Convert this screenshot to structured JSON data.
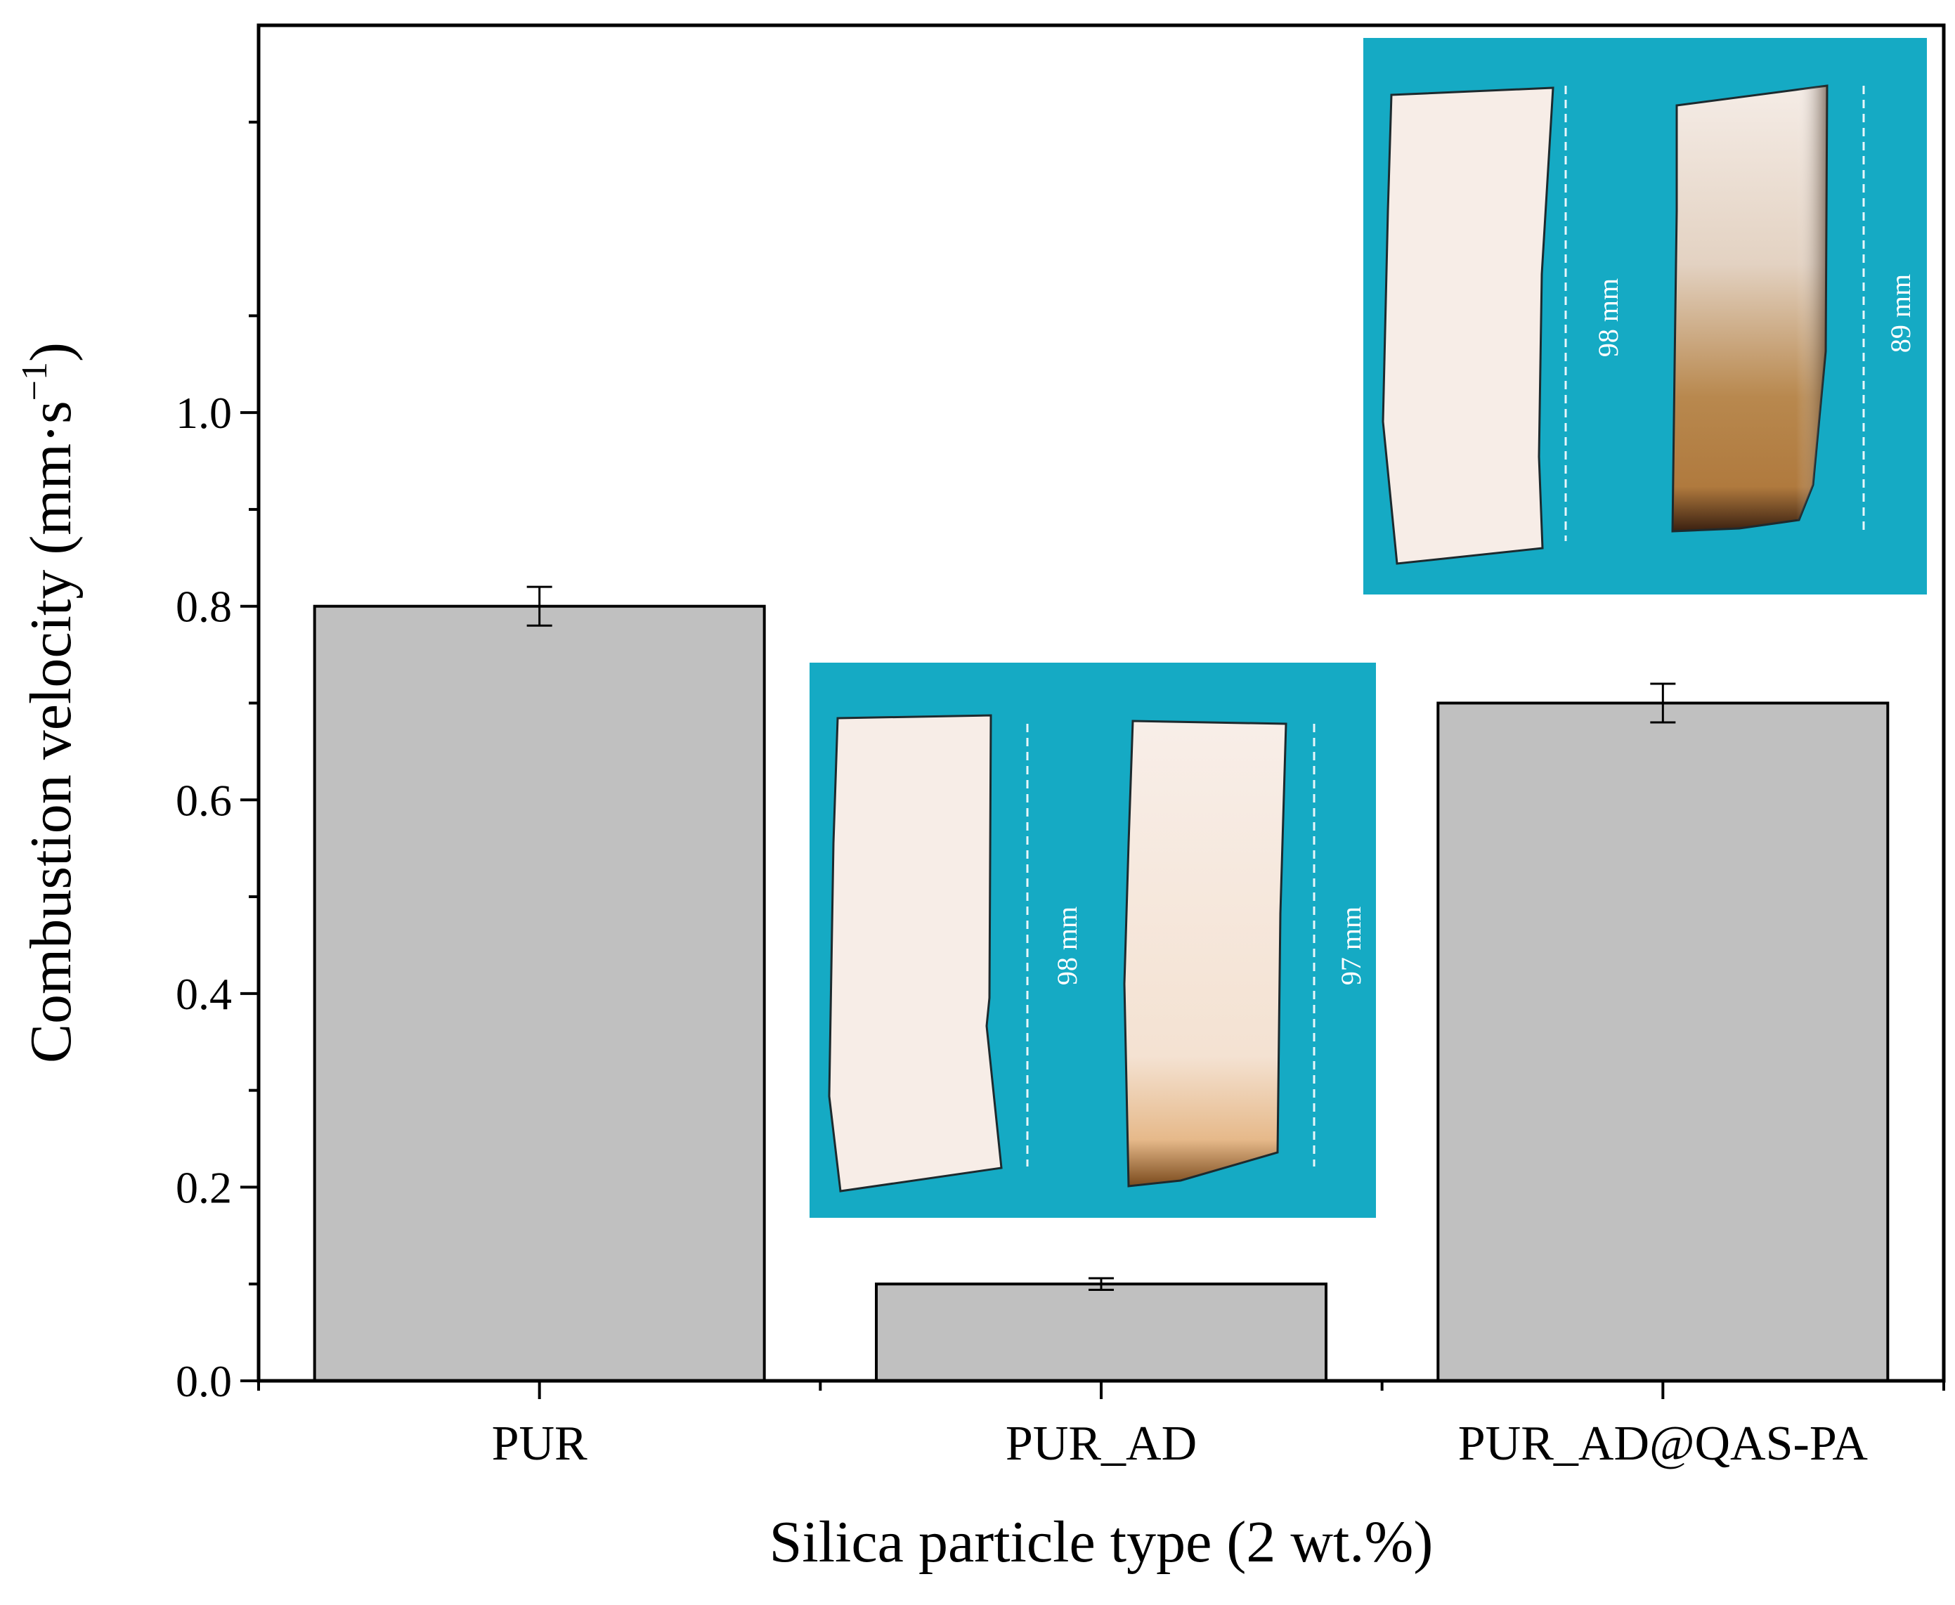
{
  "chart_data": {
    "type": "bar",
    "title": "",
    "xlabel": "Silica particle type (2 wt.%)",
    "ylabel_main": "Combustion velocity (mm·s",
    "ylabel_sup": "−1",
    "ylabel_close": ")",
    "categories": [
      "PUR",
      "PUR_AD",
      "PUR_AD@QAS-PA"
    ],
    "values": [
      0.8,
      0.1,
      0.7
    ],
    "errors": [
      0.02,
      0.006,
      0.02
    ],
    "ylim": [
      0,
      1.4
    ],
    "yticks": [
      0.0,
      0.2,
      0.4,
      0.6,
      0.8,
      1.0
    ],
    "ytick_labels": [
      "0.0",
      "0.2",
      "0.4",
      "0.6",
      "0.8",
      "1.0"
    ],
    "minor_yticks": [
      0.1,
      0.3,
      0.5,
      0.7,
      0.9,
      1.1,
      1.3
    ],
    "grid": false,
    "legend": "none"
  },
  "colors": {
    "bar_fill": "#c0c0c0",
    "bar_stroke": "#000000",
    "photo_bg": "#15aac4",
    "sample_white": "#f7ece6",
    "char_dark": "#5a3412"
  },
  "insets": {
    "pur_ad": {
      "left_length": "98 mm",
      "right_length": "97 mm"
    },
    "pur_ad_qas_pa": {
      "left_length": "98 mm",
      "right_length": "89 mm"
    }
  }
}
